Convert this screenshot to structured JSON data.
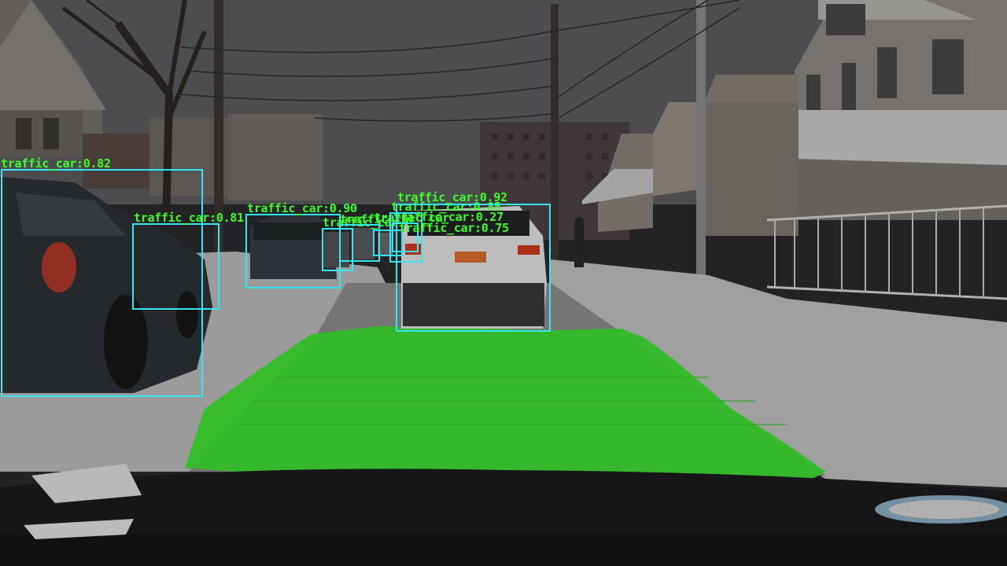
{
  "image": {
    "description_type": "dashcam frame with object detection overlay",
    "overlay_colors": {
      "box": "#35e6f0",
      "label": "#3dff28",
      "drivable_area": "#3fe632"
    }
  },
  "detections": [
    {
      "label": "traffic_car:0.82"
    },
    {
      "label": "traffic_car:0.81"
    },
    {
      "label": "traffic_car:0.90"
    },
    {
      "label": "traffic_car:0.92"
    },
    {
      "label": "traffic_car:0.85"
    },
    {
      "label": "traffic_car:0.27"
    },
    {
      "label": "traffic_car:0.75"
    },
    {
      "label": "traffic_car"
    },
    {
      "label": "traffic_car"
    },
    {
      "label": "traffic_car"
    }
  ]
}
